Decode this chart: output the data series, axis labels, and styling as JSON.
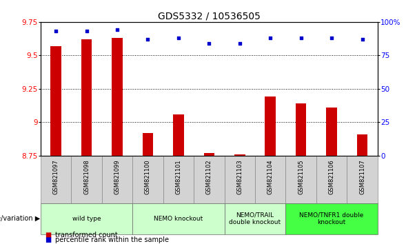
{
  "title": "GDS5332 / 10536505",
  "samples": [
    "GSM821097",
    "GSM821098",
    "GSM821099",
    "GSM821100",
    "GSM821101",
    "GSM821102",
    "GSM821103",
    "GSM821104",
    "GSM821105",
    "GSM821106",
    "GSM821107"
  ],
  "bar_values": [
    9.57,
    9.62,
    9.63,
    8.92,
    9.06,
    8.77,
    8.76,
    9.19,
    9.14,
    9.11,
    8.91
  ],
  "dot_values": [
    93,
    93,
    94,
    87,
    88,
    84,
    84,
    88,
    88,
    88,
    87
  ],
  "ylim_left": [
    8.75,
    9.75
  ],
  "ylim_right": [
    0,
    100
  ],
  "yticks_left": [
    8.75,
    9.0,
    9.25,
    9.5,
    9.75
  ],
  "ytick_labels_left": [
    "8.75",
    "9",
    "9.25",
    "9.5",
    "9.75"
  ],
  "yticks_right": [
    0,
    25,
    50,
    75,
    100
  ],
  "ytick_labels_right": [
    "0",
    "25",
    "50",
    "75",
    "100%"
  ],
  "bar_color": "#cc0000",
  "dot_color": "#0000cc",
  "bar_bottom": 8.75,
  "group_defs": [
    {
      "start": 0,
      "end": 2,
      "label": "wild type",
      "color": "#ccffcc"
    },
    {
      "start": 3,
      "end": 5,
      "label": "NEMO knockout",
      "color": "#ccffcc"
    },
    {
      "start": 6,
      "end": 7,
      "label": "NEMO/TRAIL\ndouble knockout",
      "color": "#ccffcc"
    },
    {
      "start": 8,
      "end": 10,
      "label": "NEMO/TNFR1 double\nknockout",
      "color": "#44ff44"
    }
  ],
  "legend_items": [
    {
      "color": "#cc0000",
      "label": "transformed count"
    },
    {
      "color": "#0000cc",
      "label": "percentile rank within the sample"
    }
  ],
  "xlabel_group": "genotype/variation",
  "title_fontsize": 10,
  "tick_fontsize": 7.5,
  "label_fontsize": 7,
  "bar_width": 0.35,
  "plot_bg": "#ffffff",
  "tick_label_bg": "#d3d3d3"
}
